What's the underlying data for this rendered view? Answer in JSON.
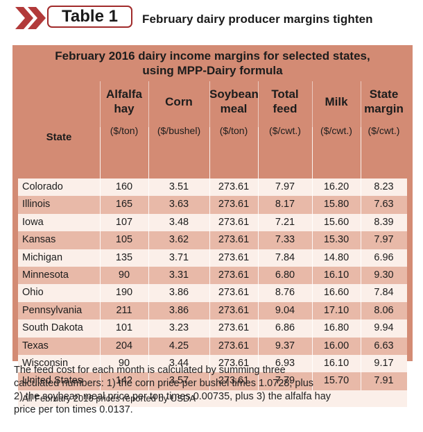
{
  "tag_label": "Table 1",
  "headline": "February dairy producer margins tighten",
  "table": {
    "title_line1": "February 2016 dairy income margins for selected states,",
    "title_line2": "using MPP-Dairy formula",
    "columns": [
      {
        "key": "state",
        "lines": [
          "",
          "",
          "State"
        ],
        "unit": ""
      },
      {
        "key": "alfalfa",
        "lines": [
          "Alfalfa",
          "hay",
          ""
        ],
        "unit": "($/ton)"
      },
      {
        "key": "corn",
        "lines": [
          "",
          "Corn",
          ""
        ],
        "unit": "($/bushel)"
      },
      {
        "key": "soy",
        "lines": [
          "Soybean",
          "meal",
          ""
        ],
        "unit": "($/ton)"
      },
      {
        "key": "feed",
        "lines": [
          "Total",
          "feed",
          ""
        ],
        "unit": "($/cwt.)"
      },
      {
        "key": "milk",
        "lines": [
          "",
          "Milk",
          ""
        ],
        "unit": "($/cwt.)"
      },
      {
        "key": "margin",
        "lines": [
          "State",
          "margin",
          ""
        ],
        "unit": "($/cwt.)"
      }
    ],
    "rows": [
      [
        "Colorado",
        "160",
        "3.51",
        "273.61",
        "7.97",
        "16.20",
        "8.23"
      ],
      [
        "Illinois",
        "165",
        "3.63",
        "273.61",
        "8.17",
        "15.80",
        "7.63"
      ],
      [
        "Iowa",
        "107",
        "3.48",
        "273.61",
        "7.21",
        "15.60",
        "8.39"
      ],
      [
        "Kansas",
        "105",
        "3.62",
        "273.61",
        "7.33",
        "15.30",
        "7.97"
      ],
      [
        "Michigan",
        "135",
        "3.71",
        "273.61",
        "7.84",
        "14.80",
        "6.96"
      ],
      [
        "Minnesota",
        "90",
        "3.31",
        "273.61",
        "6.80",
        "16.10",
        "9.30"
      ],
      [
        "Ohio",
        "190",
        "3.86",
        "273.61",
        "8.76",
        "16.60",
        "7.84"
      ],
      [
        "Pennsylvania",
        "211",
        "3.86",
        "273.61",
        "9.04",
        "17.10",
        "8.06"
      ],
      [
        "South Dakota",
        "101",
        "3.23",
        "273.61",
        "6.86",
        "16.80",
        "9.94"
      ],
      [
        "Texas",
        "204",
        "4.25",
        "273.61",
        "9.37",
        "16.00",
        "6.63"
      ],
      [
        "Wisconsin",
        "90",
        "3.44",
        "273.61",
        "6.93",
        "16.10",
        "9.17"
      ],
      [
        "United States",
        "142",
        "3.57",
        "273.61",
        "7.79",
        "15.70",
        "7.91"
      ]
    ],
    "source_note": "All February 2016 prices reported by USDA"
  },
  "footnote_lines": [
    "The feed cost for each month is calculated by summing three",
    "calculated numbers: 1) the corn price per bushel times 1.0728; plus",
    "2) the soybean meal price per ton times 0.00735, plus 3) the alfalfa hay",
    "price per ton times 0.0137."
  ],
  "colors": {
    "accent": "#a02a2a",
    "table_bg": "#d38b74",
    "row_light": "#fbefe9",
    "row_dark": "#e8b9a8"
  }
}
